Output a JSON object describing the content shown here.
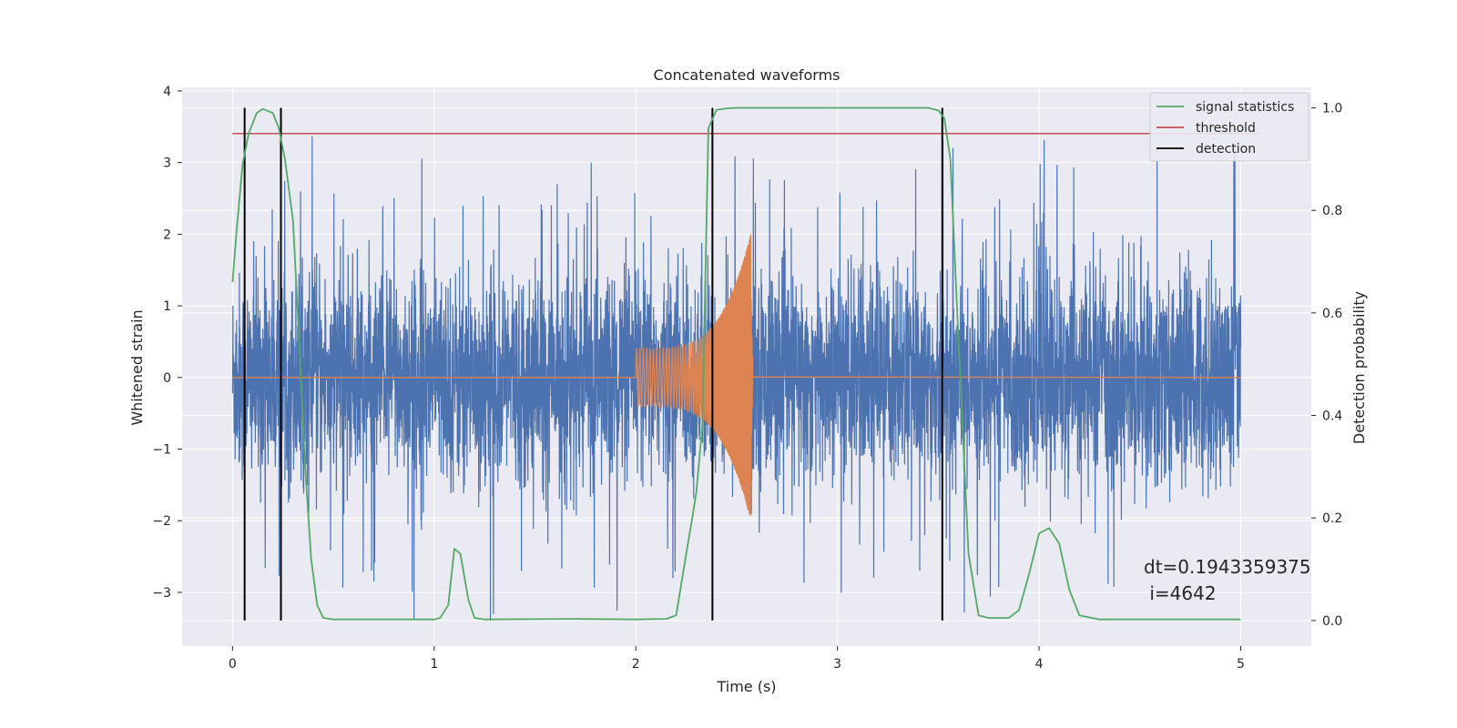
{
  "chart_data": {
    "type": "line",
    "title": "Concatenated waveforms",
    "xlabel": "Time (s)",
    "ylabel_left": "Whitened strain",
    "ylabel_right": "Detection probability",
    "xlim": [
      -0.25,
      5.35
    ],
    "ylim_left": [
      -3.75,
      4.05
    ],
    "ylim_right": [
      -0.05,
      1.04
    ],
    "x_ticks": [
      0,
      1,
      2,
      3,
      4,
      5
    ],
    "x_tick_labels": [
      "0",
      "1",
      "2",
      "3",
      "4",
      "5"
    ],
    "y_ticks_left": [
      4,
      3,
      2,
      1,
      0,
      -1,
      -2,
      -3
    ],
    "y_tick_labels_left": [
      "4",
      "3",
      "2",
      "1",
      "0",
      "−1",
      "−2",
      "−3"
    ],
    "y_ticks_right": [
      1.0,
      0.8,
      0.6,
      0.4,
      0.2,
      0.0
    ],
    "y_tick_labels_right": [
      "1.0",
      "0.8",
      "0.6",
      "0.4",
      "0.2",
      "0.0"
    ],
    "grid": true,
    "legend_position": "top-right",
    "series": [
      {
        "kind": "whitened_strain_noise",
        "axis": "left",
        "color": "#4c72b0",
        "x_range": [
          0,
          5
        ],
        "typical_envelope": [
          -1.5,
          1.5
        ],
        "extremes": [
          -3.4,
          3.7
        ]
      },
      {
        "kind": "injected_chirp",
        "axis": "left",
        "color": "#dd8452",
        "x_range": [
          2.0,
          2.58
        ],
        "start_amplitude": 0.4,
        "peak_amplitude": 2.0,
        "peak_time": 2.57
      },
      {
        "name": "signal statistics",
        "axis": "right",
        "color": "#55a868",
        "x": [
          0,
          0.02,
          0.05,
          0.08,
          0.12,
          0.15,
          0.2,
          0.23,
          0.26,
          0.3,
          0.33,
          0.36,
          0.39,
          0.42,
          0.45,
          0.5,
          1.0,
          1.03,
          1.07,
          1.1,
          1.13,
          1.17,
          1.2,
          1.25,
          1.7,
          2.0,
          2.15,
          2.2,
          2.25,
          2.28,
          2.3,
          2.33,
          2.36,
          2.4,
          2.45,
          2.5,
          3.0,
          3.45,
          3.5,
          3.53,
          3.56,
          3.6,
          3.65,
          3.7,
          3.75,
          3.85,
          3.9,
          3.95,
          4.0,
          4.05,
          4.1,
          4.15,
          4.2,
          4.3,
          5.0
        ],
        "y": [
          0.66,
          0.76,
          0.89,
          0.95,
          0.99,
          0.998,
          0.99,
          0.96,
          0.9,
          0.78,
          0.55,
          0.3,
          0.12,
          0.03,
          0.005,
          0.002,
          0.002,
          0.005,
          0.03,
          0.14,
          0.13,
          0.04,
          0.005,
          0.002,
          0.003,
          0.002,
          0.003,
          0.01,
          0.13,
          0.2,
          0.25,
          0.38,
          0.96,
          0.996,
          0.999,
          1.0,
          1.0,
          1.0,
          0.995,
          0.98,
          0.9,
          0.55,
          0.13,
          0.01,
          0.005,
          0.005,
          0.02,
          0.09,
          0.17,
          0.18,
          0.15,
          0.06,
          0.01,
          0.002,
          0.002
        ]
      },
      {
        "name": "threshold",
        "axis": "right",
        "color": "#c44e52",
        "x_range": [
          0,
          5.1
        ],
        "value": 0.95
      },
      {
        "name": "detection",
        "axis": "right",
        "color": "#000000",
        "x": [
          0.06,
          0.24,
          2.38,
          3.52
        ],
        "y_range": [
          0.0,
          1.0
        ]
      }
    ],
    "annotations": [
      "dt=0.1943359375",
      " i=4642"
    ]
  }
}
